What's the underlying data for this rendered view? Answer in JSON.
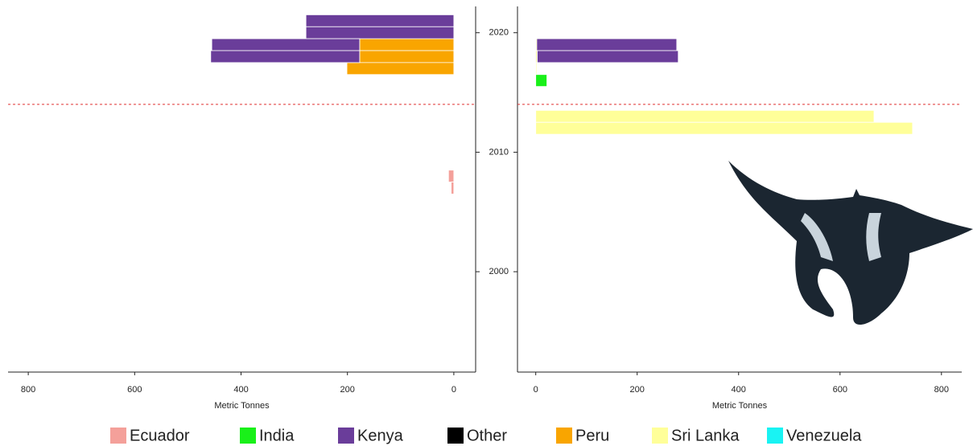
{
  "chart_data": {
    "type": "bar",
    "orientation": "horizontal",
    "stacked": true,
    "ylim": [
      1991.6,
      2022.2
    ],
    "yticks": [
      2000,
      2010,
      2020
    ],
    "hline": {
      "value": 2014,
      "color": "#e03030",
      "dashed": true
    },
    "legend": [
      {
        "name": "Ecuador",
        "color": "#f4a09a"
      },
      {
        "name": "India",
        "color": "#19f019"
      },
      {
        "name": "Kenya",
        "color": "#6a3d9a"
      },
      {
        "name": "Other",
        "color": "#000000"
      },
      {
        "name": "Peru",
        "color": "#f9a500"
      },
      {
        "name": "Sri Lanka",
        "color": "#ffff99"
      },
      {
        "name": "Venezuela",
        "color": "#19f3f3"
      }
    ],
    "panels": [
      {
        "xlabel": "Metric Tonnes",
        "xlim": [
          838,
          -41
        ],
        "xticks": [
          800,
          600,
          400,
          200,
          0
        ],
        "y": [
          2021,
          2020,
          2019,
          2018,
          2017,
          2008,
          2007
        ],
        "series": [
          {
            "name": "Ecuador",
            "values": [
              null,
              null,
              null,
              null,
              null,
              10,
              5
            ]
          },
          {
            "name": "Peru",
            "values": [
              null,
              null,
              177,
              177,
              201,
              null,
              null
            ]
          },
          {
            "name": "Kenya",
            "values": [
              278,
              278,
              278,
              280,
              null,
              null,
              null
            ]
          }
        ]
      },
      {
        "xlabel": "Metric Tonnes",
        "xlim": [
          -36,
          840
        ],
        "xticks": [
          0,
          200,
          400,
          600,
          800
        ],
        "y": [
          2019,
          2018,
          2017,
          2016,
          2013,
          2012
        ],
        "series": [
          {
            "name": "Sri Lanka",
            "values": [
              2,
              3,
              2,
              null,
              667,
              743
            ]
          },
          {
            "name": "India",
            "values": [
              null,
              null,
              null,
              22,
              null,
              null
            ]
          },
          {
            "name": "Kenya",
            "values": [
              276,
              278,
              null,
              null,
              null,
              null
            ]
          }
        ]
      }
    ]
  }
}
